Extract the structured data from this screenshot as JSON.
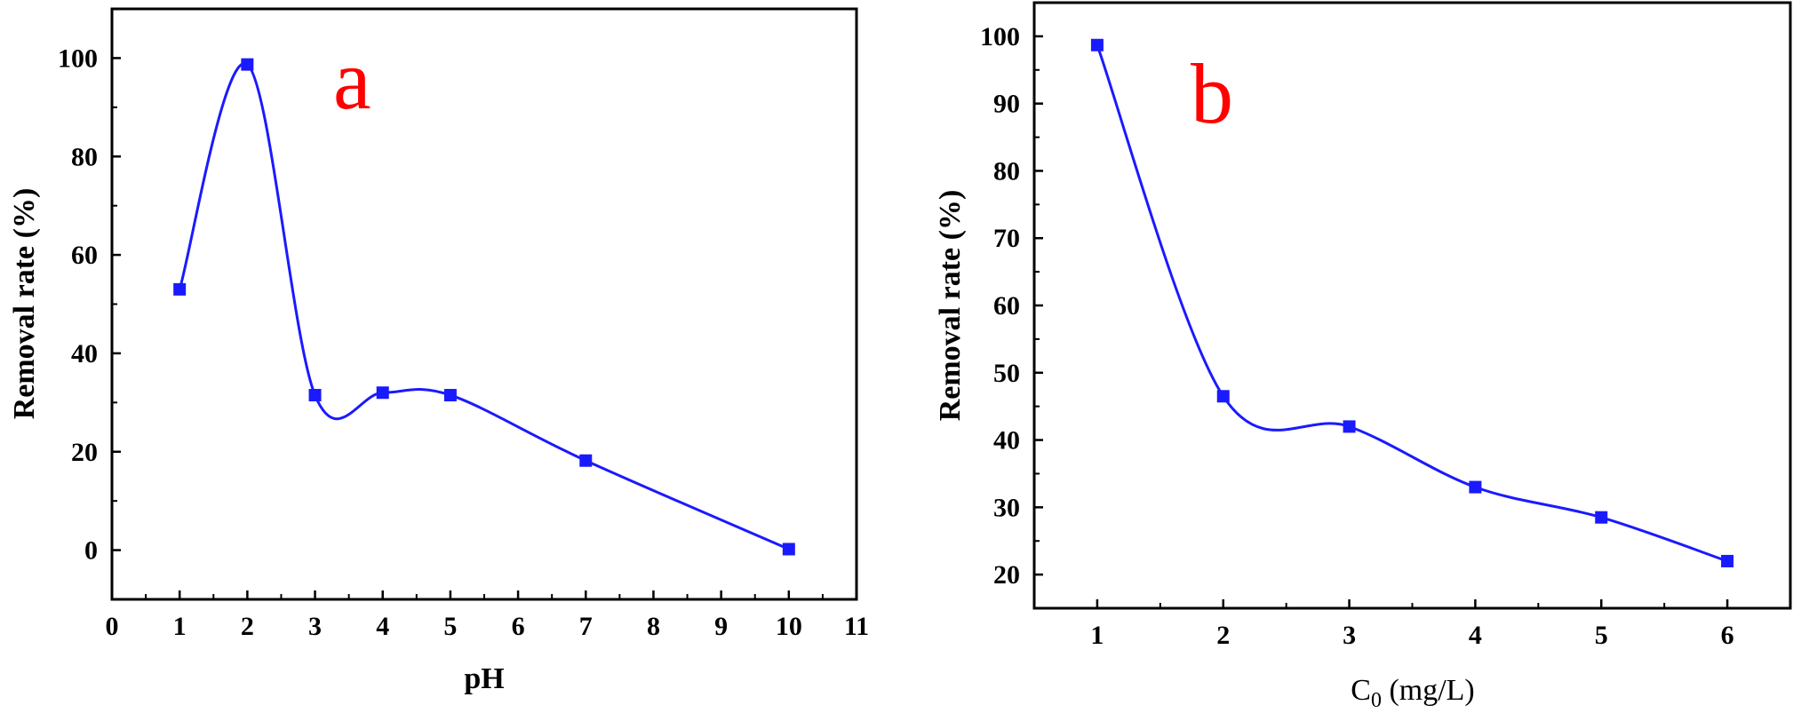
{
  "chart_data": [
    {
      "type": "line",
      "panel_label": "a",
      "xlabel": "pH",
      "ylabel": "Removal rate (%)",
      "x_ticks": [
        "0",
        "1",
        "2",
        "3",
        "4",
        "5",
        "6",
        "7",
        "8",
        "9",
        "10",
        "11"
      ],
      "y_ticks": [
        "0",
        "20",
        "40",
        "60",
        "80",
        "100"
      ],
      "xlim": [
        0,
        11
      ],
      "ylim": [
        -10,
        110
      ],
      "x_categories": [
        "1",
        "2",
        "3",
        "4",
        "5",
        "7",
        "10"
      ],
      "values": [
        53,
        98.7,
        31.5,
        32,
        31.5,
        18.2,
        0.2
      ],
      "marker": "square",
      "smooth": true,
      "grid": false,
      "series_color": "#1a1aff",
      "label_color": "#ff0000"
    },
    {
      "type": "line",
      "panel_label": "b",
      "xlabel_main": "C",
      "xlabel_sub": "0",
      "xlabel_unit": " (mg/L)",
      "ylabel": "Removal rate (%)",
      "x_ticks": [
        "1",
        "2",
        "3",
        "4",
        "5",
        "6"
      ],
      "y_ticks": [
        "20",
        "30",
        "40",
        "50",
        "60",
        "70",
        "80",
        "90",
        "100"
      ],
      "xlim": [
        0.5,
        6.5
      ],
      "ylim": [
        15,
        105
      ],
      "x": [
        1,
        2,
        3,
        4,
        5,
        6
      ],
      "values": [
        98.7,
        46.5,
        42,
        33,
        28.5,
        22
      ],
      "marker": "square",
      "smooth": true,
      "grid": false,
      "series_color": "#1a1aff",
      "label_color": "#ff0000"
    }
  ]
}
